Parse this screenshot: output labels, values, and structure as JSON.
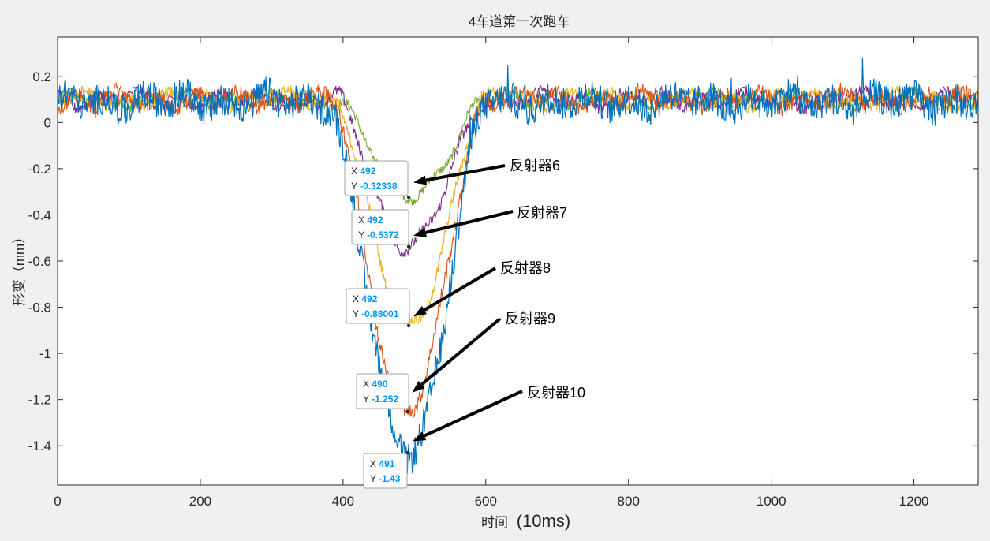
{
  "chart_data": {
    "type": "line",
    "title": "4车道第一次跑车",
    "xlabel": "时间",
    "xlabel_unit": "(10ms)",
    "ylabel": "形变（mm）",
    "xlim": [
      0,
      1290
    ],
    "ylim": [
      -1.57,
      0.37
    ],
    "xticks": [
      0,
      200,
      400,
      600,
      800,
      1000,
      1200
    ],
    "yticks": [
      0.2,
      0,
      -0.2,
      -0.4,
      -0.6,
      -0.8,
      -1,
      -1.2,
      -1.4
    ],
    "grid": false,
    "series_colors": {
      "反射器10": "#0072bd",
      "反射器9": "#d95319",
      "反射器8": "#edb120",
      "反射器7": "#7e2f8e",
      "反射器6": "#77ac30"
    },
    "series": [
      {
        "ref": "反射器6",
        "color": "#77ac30",
        "baseline": 0.1,
        "min": -0.32338,
        "min_x": 492,
        "dip_start": 395,
        "dip_end": 600,
        "noise": 0.02
      },
      {
        "ref": "反射器7",
        "color": "#7e2f8e",
        "baseline": 0.1,
        "min": -0.5372,
        "min_x": 492,
        "dip_start": 392,
        "dip_end": 600,
        "noise": 0.025
      },
      {
        "ref": "反射器8",
        "color": "#edb120",
        "baseline": 0.1,
        "min": -0.88001,
        "min_x": 492,
        "dip_start": 390,
        "dip_end": 598,
        "noise": 0.025
      },
      {
        "ref": "反射器9",
        "color": "#d95319",
        "baseline": 0.1,
        "min": -1.252,
        "min_x": 490,
        "dip_start": 385,
        "dip_end": 598,
        "noise": 0.035
      },
      {
        "ref": "反射器10",
        "color": "#0072bd",
        "baseline": 0.09,
        "min": -1.43,
        "min_x": 491,
        "dip_start": 380,
        "dip_end": 600,
        "noise": 0.07
      }
    ],
    "datatips": [
      {
        "x": "492",
        "y": "-0.32338"
      },
      {
        "x": "492",
        "y": "-0.5372"
      },
      {
        "x": "492",
        "y": "-0.88001"
      },
      {
        "x": "490",
        "y": "-1.252"
      },
      {
        "x": "491",
        "y": "-1.43"
      }
    ],
    "annotations": [
      {
        "text": "反射器6",
        "target": {
          "x": 492,
          "y": -0.26
        }
      },
      {
        "text": "反射器7",
        "target": {
          "x": 492,
          "y": -0.49
        }
      },
      {
        "text": "反射器8",
        "target": {
          "x": 492,
          "y": -0.84
        }
      },
      {
        "text": "反射器9",
        "target": {
          "x": 490,
          "y": -1.17
        }
      },
      {
        "text": "反射器10",
        "target": {
          "x": 491,
          "y": -1.38
        }
      }
    ]
  }
}
